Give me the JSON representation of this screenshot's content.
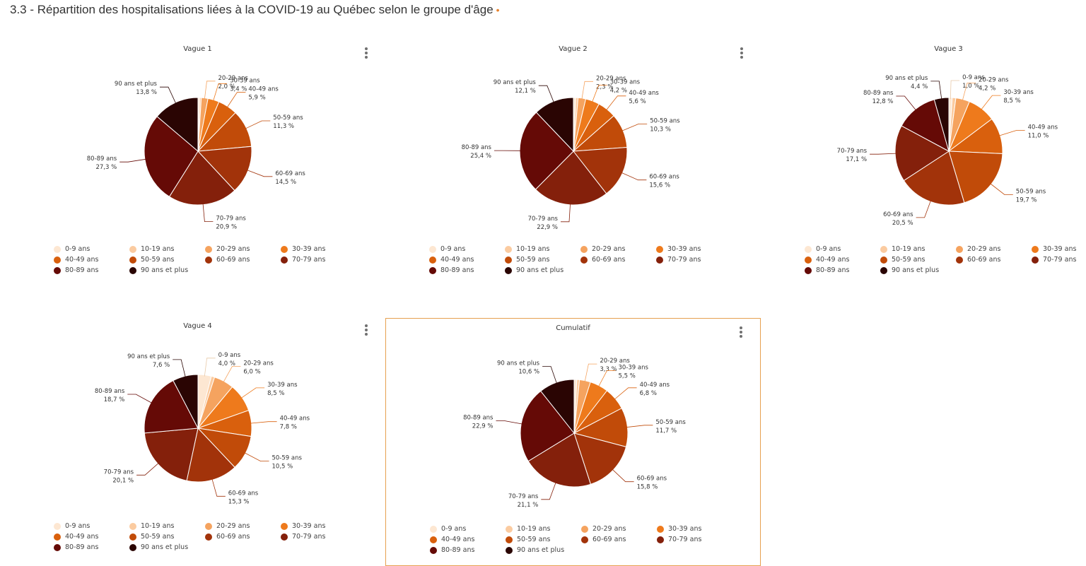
{
  "page": {
    "title": "3.3 - Répartition des hospitalisations liées à la COVID-19 au Québec selon le groupe d'âge",
    "title_marker": "•",
    "menu_icon": "kebab-vertical-icon"
  },
  "colors": {
    "0-9 ans": "#fde7d2",
    "10-19 ans": "#fbcba0",
    "20-29 ans": "#f5a35f",
    "30-39 ans": "#ee7a1c",
    "40-49 ans": "#d9600d",
    "50-59 ans": "#c14b09",
    "60-69 ans": "#a2330a",
    "70-79 ans": "#84200b",
    "80-89 ans": "#650a06",
    "90 ans et plus": "#2a0503"
  },
  "legend": [
    "0-9 ans",
    "10-19 ans",
    "20-29 ans",
    "30-39 ans",
    "40-49 ans",
    "50-59 ans",
    "60-69 ans",
    "70-79 ans",
    "80-89 ans",
    "90 ans et plus"
  ],
  "chart_data": [
    {
      "type": "pie",
      "title": "Vague 1",
      "categories": [
        "0-9 ans",
        "10-19 ans",
        "20-29 ans",
        "30-39 ans",
        "40-49 ans",
        "50-59 ans",
        "60-69 ans",
        "70-79 ans",
        "80-89 ans",
        "90 ans et plus"
      ],
      "values": [
        0.5,
        0.5,
        2.0,
        3.4,
        5.9,
        11.3,
        14.5,
        20.9,
        27.3,
        13.8
      ],
      "data_labels": [
        "",
        "",
        "2,0 %",
        "3,4 %",
        "5,9 %",
        "11,3 %",
        "14,5 %",
        "20,9 %",
        "27,3 %",
        "13,8 %"
      ],
      "legend_position": "bottom"
    },
    {
      "type": "pie",
      "title": "Vague 2",
      "categories": [
        "0-9 ans",
        "10-19 ans",
        "20-29 ans",
        "30-39 ans",
        "40-49 ans",
        "50-59 ans",
        "60-69 ans",
        "70-79 ans",
        "80-89 ans",
        "90 ans et plus"
      ],
      "values": [
        0.7,
        0.7,
        2.3,
        4.2,
        5.6,
        10.3,
        15.6,
        22.9,
        25.4,
        12.1
      ],
      "data_labels": [
        "",
        "",
        "2,3 %",
        "4,2 %",
        "5,6 %",
        "10,3 %",
        "15,6 %",
        "22,9 %",
        "25,4 %",
        "12,1 %"
      ],
      "legend_position": "bottom"
    },
    {
      "type": "pie",
      "title": "Vague 3",
      "categories": [
        "0-9 ans",
        "10-19 ans",
        "20-29 ans",
        "30-39 ans",
        "40-49 ans",
        "50-59 ans",
        "60-69 ans",
        "70-79 ans",
        "80-89 ans",
        "90 ans et plus"
      ],
      "values": [
        1.0,
        1.1,
        4.2,
        8.5,
        11.0,
        19.7,
        20.5,
        17.1,
        12.8,
        4.4
      ],
      "data_labels": [
        "1,0 %",
        "",
        "4,2 %",
        "8,5 %",
        "11,0 %",
        "19,7 %",
        "20,5 %",
        "17,1 %",
        "12,8 %",
        "4,4 %"
      ],
      "legend_position": "bottom"
    },
    {
      "type": "pie",
      "title": "Vague 4",
      "categories": [
        "0-9 ans",
        "10-19 ans",
        "20-29 ans",
        "30-39 ans",
        "40-49 ans",
        "50-59 ans",
        "60-69 ans",
        "70-79 ans",
        "80-89 ans",
        "90 ans et plus"
      ],
      "values": [
        4.0,
        1.0,
        6.0,
        8.5,
        7.8,
        10.5,
        15.3,
        20.1,
        18.7,
        7.6
      ],
      "data_labels": [
        "4,0 %",
        "",
        "6,0 %",
        "8,5 %",
        "7,8 %",
        "10,5 %",
        "15,3 %",
        "20,1 %",
        "18,7 %",
        "7,6 %"
      ],
      "legend_position": "bottom"
    },
    {
      "type": "pie",
      "title": "Cumulatif",
      "categories": [
        "0-9 ans",
        "10-19 ans",
        "20-29 ans",
        "30-39 ans",
        "40-49 ans",
        "50-59 ans",
        "60-69 ans",
        "70-79 ans",
        "80-89 ans",
        "90 ans et plus"
      ],
      "values": [
        0.8,
        0.8,
        3.3,
        5.5,
        6.8,
        11.7,
        15.8,
        21.1,
        22.9,
        10.6
      ],
      "data_labels": [
        "",
        "",
        "3,3 %",
        "5,5 %",
        "6,8 %",
        "11,7 %",
        "15,8 %",
        "21,1 %",
        "22,9 %",
        "10,6 %"
      ],
      "legend_position": "bottom"
    }
  ]
}
